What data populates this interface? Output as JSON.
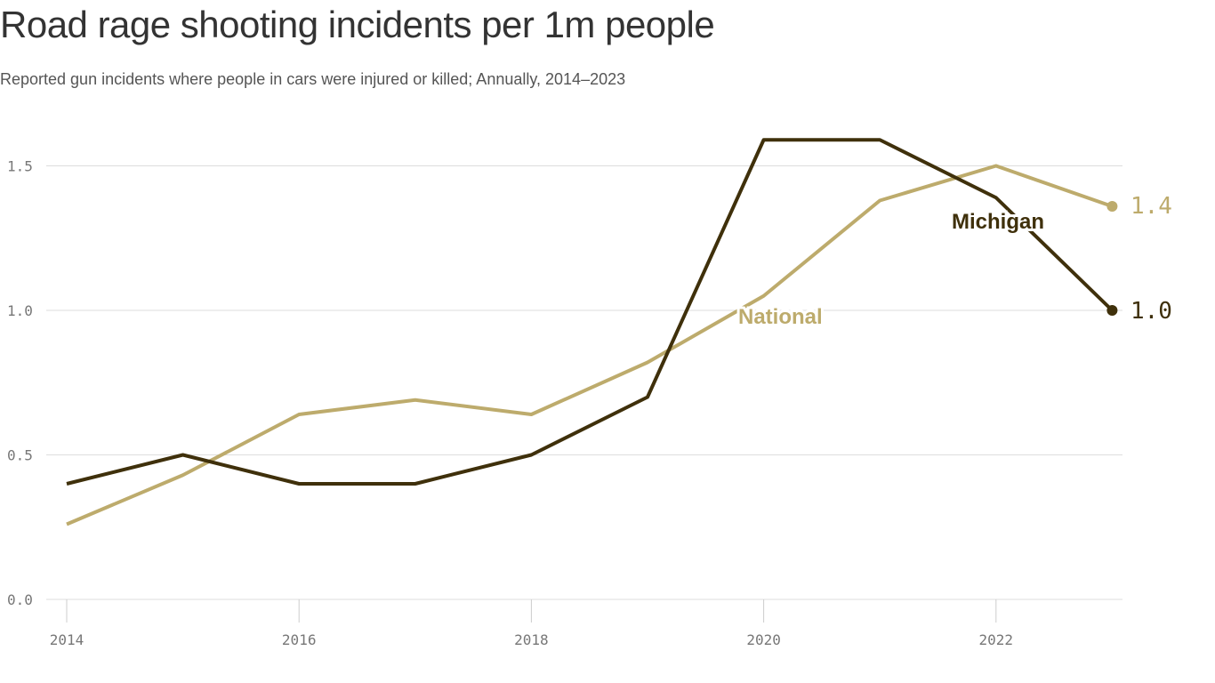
{
  "chart_data": {
    "type": "line",
    "title": "Road rage shooting incidents per 1m people",
    "subtitle": "Reported gun incidents where people in cars were injured or killed; Annually, 2014–2023",
    "x": [
      2014,
      2015,
      2016,
      2017,
      2018,
      2019,
      2020,
      2021,
      2022,
      2023
    ],
    "xticks": [
      "2014",
      "2016",
      "2018",
      "2020",
      "2022"
    ],
    "yticks": [
      "0.0",
      "0.5",
      "1.0",
      "1.5"
    ],
    "ylim": [
      0,
      1.65
    ],
    "grid": true,
    "series": [
      {
        "name": "Michigan",
        "color": "#3f300b",
        "values": [
          0.4,
          0.5,
          0.4,
          0.4,
          0.5,
          0.7,
          1.59,
          1.59,
          1.39,
          1.0
        ],
        "end_label": "1.0"
      },
      {
        "name": "National",
        "color": "#bdab6c",
        "values": [
          0.26,
          0.43,
          0.64,
          0.69,
          0.64,
          0.82,
          1.05,
          1.38,
          1.5,
          1.36
        ],
        "end_label": "1.4"
      }
    ]
  }
}
